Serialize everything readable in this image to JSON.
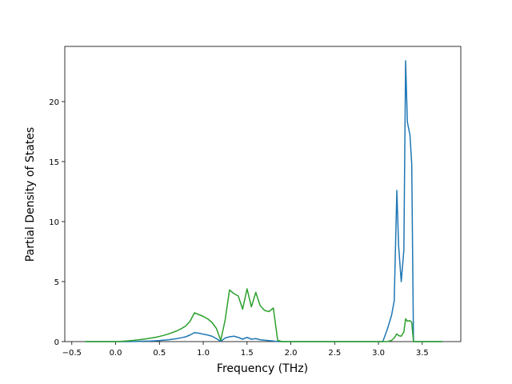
{
  "chart_data": {
    "type": "line",
    "x_label": "Frequency (THz)",
    "y_label": "Partial Density of States",
    "x": [
      -0.35,
      0.0,
      0.05,
      0.1,
      0.15,
      0.2,
      0.25,
      0.3,
      0.35,
      0.4,
      0.45,
      0.5,
      0.55,
      0.6,
      0.65,
      0.7,
      0.75,
      0.8,
      0.85,
      0.9,
      0.95,
      1.0,
      1.05,
      1.1,
      1.15,
      1.2,
      1.25,
      1.3,
      1.35,
      1.4,
      1.45,
      1.5,
      1.55,
      1.6,
      1.65,
      1.7,
      1.75,
      1.8,
      1.85,
      1.9,
      2.5,
      3.05,
      3.1,
      3.15,
      3.18,
      3.21,
      3.23,
      3.26,
      3.29,
      3.31,
      3.33,
      3.36,
      3.38,
      3.4,
      3.45,
      3.73
    ],
    "series": [
      {
        "color": "#1f77b4",
        "values": [
          0,
          0,
          0,
          0,
          0,
          0.01,
          0.02,
          0.03,
          0.04,
          0.05,
          0.07,
          0.09,
          0.12,
          0.15,
          0.2,
          0.25,
          0.32,
          0.4,
          0.55,
          0.75,
          0.7,
          0.62,
          0.55,
          0.45,
          0.25,
          0.02,
          0.3,
          0.4,
          0.45,
          0.35,
          0.2,
          0.35,
          0.2,
          0.25,
          0.15,
          0.12,
          0.08,
          0.05,
          0,
          0,
          0,
          0,
          1.0,
          2.2,
          3.4,
          12.6,
          8.0,
          5.0,
          7.6,
          23.4,
          18.3,
          17.2,
          14.8,
          0,
          0,
          0
        ]
      },
      {
        "color": "#2ca02c",
        "values": [
          0,
          0,
          0.02,
          0.04,
          0.07,
          0.1,
          0.14,
          0.18,
          0.23,
          0.29,
          0.35,
          0.43,
          0.52,
          0.63,
          0.76,
          0.9,
          1.08,
          1.3,
          1.7,
          2.4,
          2.25,
          2.1,
          1.9,
          1.6,
          1.1,
          0.1,
          1.8,
          4.3,
          4.0,
          3.8,
          2.7,
          4.4,
          2.9,
          4.1,
          3.0,
          2.6,
          2.5,
          2.8,
          0.1,
          0,
          0,
          0,
          0,
          0.1,
          0.3,
          0.65,
          0.5,
          0.45,
          0.8,
          1.9,
          1.7,
          1.75,
          1.6,
          0,
          0,
          0
        ]
      }
    ],
    "xlim": [
      -0.58,
      3.94
    ],
    "ylim": [
      0,
      24.6
    ],
    "xticks": [
      {
        "value": -0.5,
        "label": "−0.5"
      },
      {
        "value": 0,
        "label": "0.0"
      },
      {
        "value": 0.5,
        "label": "0.5"
      },
      {
        "value": 1,
        "label": "1.0"
      },
      {
        "value": 1.5,
        "label": "1.5"
      },
      {
        "value": 2,
        "label": "2.0"
      },
      {
        "value": 2.5,
        "label": "2.5"
      },
      {
        "value": 3,
        "label": "3.0"
      },
      {
        "value": 3.5,
        "label": "3.5"
      }
    ],
    "yticks": [
      0,
      5,
      10,
      15,
      20
    ]
  }
}
